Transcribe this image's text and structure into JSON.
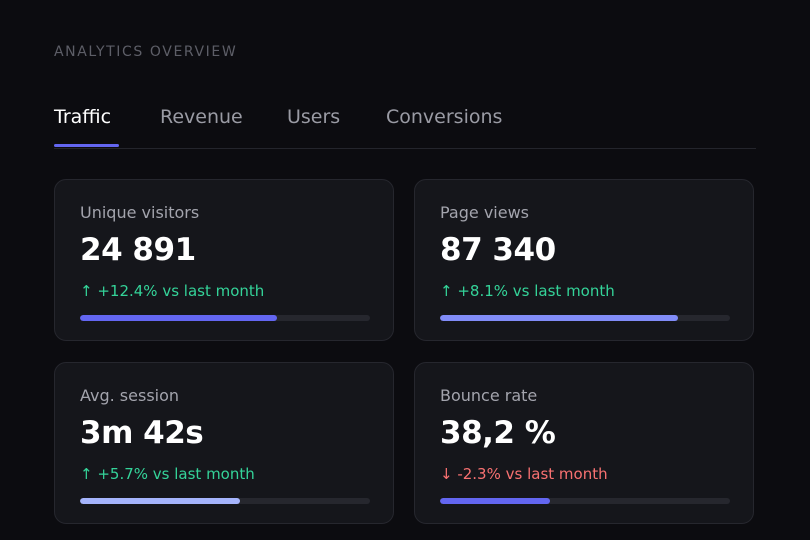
{
  "header": {
    "section_title": "ANALYTICS OVERVIEW"
  },
  "tabs": [
    {
      "label": "Traffic",
      "active": true
    },
    {
      "label": "Revenue",
      "active": false
    },
    {
      "label": "Users",
      "active": false
    },
    {
      "label": "Conversions",
      "active": false
    }
  ],
  "cards": [
    {
      "label": "Unique visitors",
      "value": "24 891",
      "delta": "↑ +12.4% vs last month",
      "trend": "up",
      "progress": 0.68,
      "bar_color": "#6366f1"
    },
    {
      "label": "Page views",
      "value": "87 340",
      "delta": "↑ +8.1% vs last month",
      "trend": "up",
      "progress": 0.82,
      "bar_color": "#818cf8"
    },
    {
      "label": "Avg. session",
      "value": "3m 42s",
      "delta": "↑ +5.7% vs last month",
      "trend": "up",
      "progress": 0.55,
      "bar_color": "#a5b4fc"
    },
    {
      "label": "Bounce rate",
      "value": "38,2 %",
      "delta": "↓ -2.3% vs last month",
      "trend": "down",
      "progress": 0.38,
      "bar_color": "#6366f1"
    }
  ],
  "colors": {
    "accent": "#6366f1",
    "up": "#34d399",
    "down": "#f87171"
  }
}
